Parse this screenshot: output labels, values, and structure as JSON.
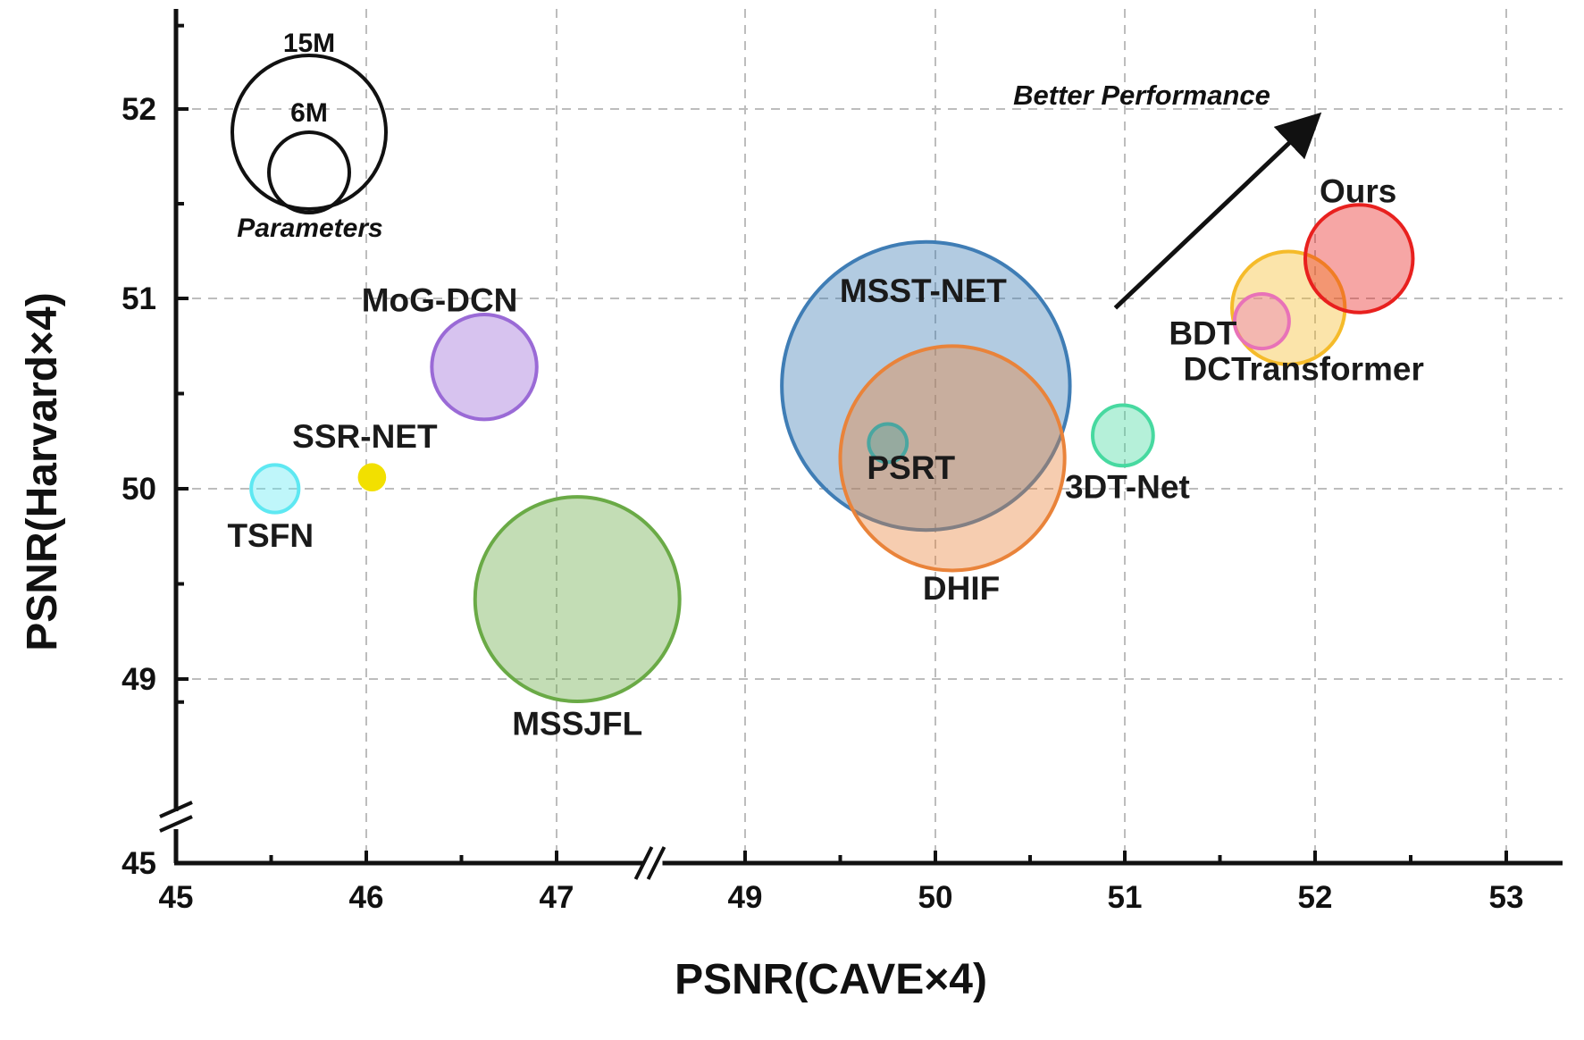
{
  "chart_data": {
    "type": "scatter",
    "variant": "bubble",
    "xlabel": "PSNR(CAVE×4)",
    "ylabel": "PSNR(Harvard×4)",
    "x_ticks": [
      "45",
      "46",
      "47",
      "49",
      "50",
      "51",
      "52",
      "53"
    ],
    "y_ticks": [
      "45",
      "49",
      "50",
      "51",
      "52"
    ],
    "x_axis_break": [
      47.6,
      48.8
    ],
    "y_axis_break": [
      45.5,
      48.5
    ],
    "xlim": [
      45,
      53.3
    ],
    "ylim": [
      45,
      52.6
    ],
    "grid": true,
    "size_legend": {
      "title": "Parameters",
      "entries": [
        {
          "label": "15M",
          "value_M": 15
        },
        {
          "label": "6M",
          "value_M": 6
        }
      ]
    },
    "annotation": {
      "text": "Better Performance",
      "arrow_from": [
        50.95,
        50.95
      ],
      "arrow_to": [
        52.0,
        51.95
      ]
    },
    "series": [
      {
        "name": "TSFN",
        "x": 45.52,
        "y": 50.0,
        "size_M": 0.2,
        "color": "#5ee8f2"
      },
      {
        "name": "SSR-NET",
        "x": 46.03,
        "y": 50.06,
        "size_M": 0.03,
        "color": "#f2e000"
      },
      {
        "name": "MoG-DCN",
        "x": 46.62,
        "y": 50.64,
        "size_M": 1.6,
        "color": "#9a6ad6"
      },
      {
        "name": "MSSJFL",
        "x": 47.22,
        "y": 49.42,
        "size_M": 7.2,
        "color": "#6aaa46"
      },
      {
        "name": "MSST-NET",
        "x": 49.95,
        "y": 50.54,
        "size_M": 15.0,
        "color": "#3f7db5"
      },
      {
        "name": "DHIF",
        "x": 50.09,
        "y": 50.16,
        "size_M": 8.8,
        "color": "#e9833a"
      },
      {
        "name": "PSRT",
        "x": 49.75,
        "y": 50.24,
        "size_M": 0.1,
        "color": "#4aa6a0"
      },
      {
        "name": "3DT-Net",
        "x": 50.99,
        "y": 50.28,
        "size_M": 0.4,
        "color": "#47d9a0"
      },
      {
        "name": "DCTransformer",
        "x": 51.86,
        "y": 50.95,
        "size_M": 1.9,
        "color": "#f5bb2a"
      },
      {
        "name": "BDT",
        "x": 51.72,
        "y": 50.88,
        "size_M": 0.3,
        "color": "#e872b8"
      },
      {
        "name": "Ours",
        "x": 52.23,
        "y": 51.21,
        "size_M": 1.7,
        "color": "#e8201e"
      }
    ]
  }
}
